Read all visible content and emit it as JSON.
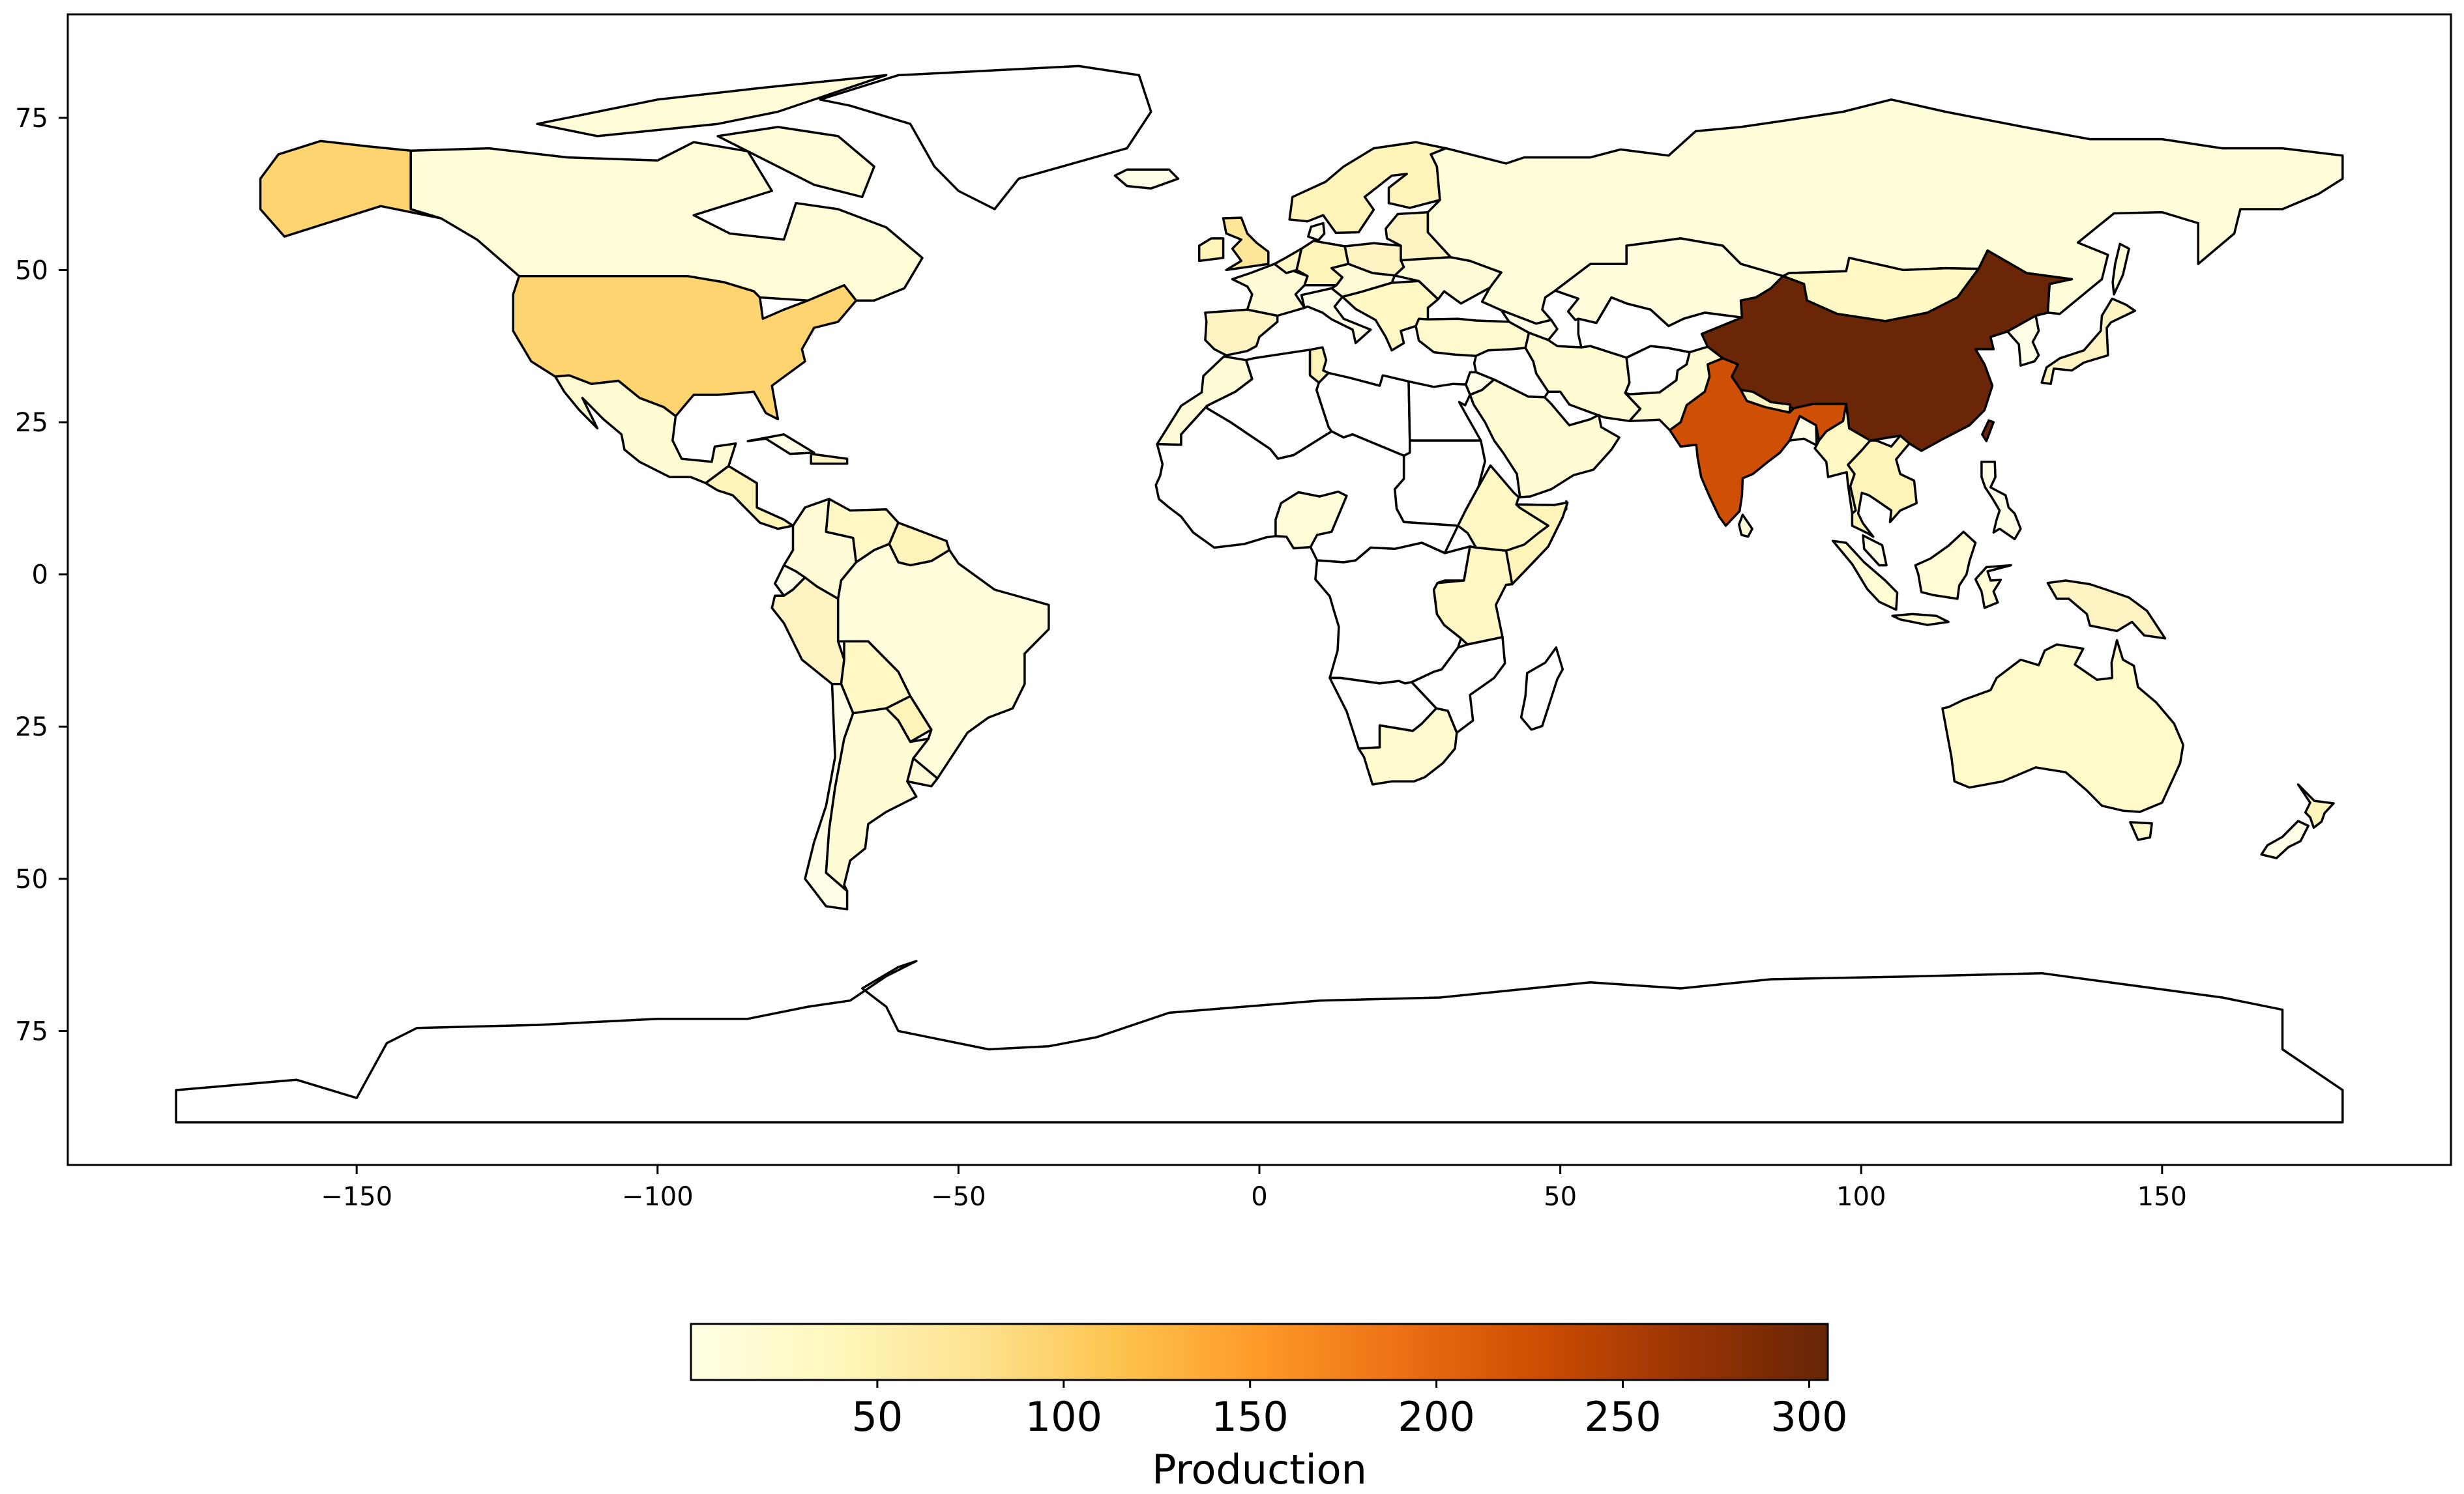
{
  "chart_data": {
    "type": "choropleth",
    "title": "",
    "xlabel": "",
    "ylabel": "",
    "xlim": [
      -198,
      198
    ],
    "ylim": [
      -97,
      92
    ],
    "x_ticks": [
      {
        "value": -150,
        "label": "−150"
      },
      {
        "value": -100,
        "label": "−100"
      },
      {
        "value": -50,
        "label": "−50"
      },
      {
        "value": 0,
        "label": "0"
      },
      {
        "value": 50,
        "label": "50"
      },
      {
        "value": 100,
        "label": "100"
      },
      {
        "value": 150,
        "label": "150"
      }
    ],
    "y_ticks": [
      {
        "value": 75,
        "label": "75"
      },
      {
        "value": 50,
        "label": "50"
      },
      {
        "value": 25,
        "label": "25"
      },
      {
        "value": 0,
        "label": "0"
      },
      {
        "value": -25,
        "label": "25"
      },
      {
        "value": -50,
        "label": "50"
      },
      {
        "value": -75,
        "label": "75"
      }
    ],
    "grid": false,
    "colorbar": {
      "label": "Production",
      "cmap": "YlOrBr",
      "range": [
        0,
        305
      ],
      "ticks": [
        50,
        100,
        150,
        200,
        250,
        300
      ],
      "placement": "bottom",
      "stops": [
        "#ffffe5",
        "#fff7bc",
        "#fee391",
        "#fec44f",
        "#fe9929",
        "#ec7014",
        "#cc4c02",
        "#993404",
        "#662506"
      ]
    },
    "no_data_color": "#ffffff",
    "regions": [
      {
        "name": "China",
        "value": 302
      },
      {
        "name": "India",
        "value": 225
      },
      {
        "name": "United States",
        "value": 95
      },
      {
        "name": "Alaska",
        "value": 95
      },
      {
        "name": "United Kingdom",
        "value": 70
      },
      {
        "name": "Australia",
        "value": 25
      },
      {
        "name": "Canada",
        "value": 12
      },
      {
        "name": "Russia",
        "value": 10
      },
      {
        "name": "Brazil",
        "value": 8
      },
      {
        "name": "Mexico",
        "value": 18
      },
      {
        "name": "Argentina",
        "value": 15
      },
      {
        "name": "South Africa",
        "value": 20
      },
      {
        "name": "Iran",
        "value": 18
      },
      {
        "name": "Saudi Arabia",
        "value": 16
      },
      {
        "name": "Indonesia",
        "value": 14
      },
      {
        "name": "Nigeria",
        "value": 12
      },
      {
        "name": "Pakistan",
        "value": 16
      },
      {
        "name": "Kazakhstan",
        "value": 8
      },
      {
        "name": "Turkey",
        "value": 22
      }
    ]
  }
}
